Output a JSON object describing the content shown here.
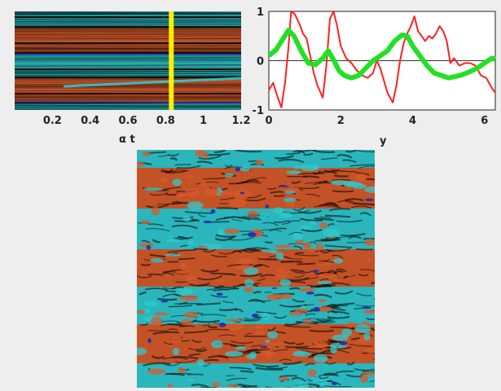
{
  "chart_data": [
    {
      "type": "heatmap",
      "xlabel": "α t",
      "xticks": [
        0.2,
        0.4,
        0.6,
        0.8,
        1,
        1.2
      ],
      "xlim": [
        0,
        1.2
      ],
      "marker": {
        "x": 0.83,
        "color": "#ffee00"
      },
      "colors": {
        "positive": "#d85a2a",
        "negative": "#2ec9cf",
        "extreme": "#1f2fb0",
        "zero": "#111111"
      }
    },
    {
      "type": "line",
      "xlabel": "y",
      "xlim": [
        0,
        6.3
      ],
      "ylim": [
        -1,
        1
      ],
      "xticks": [
        0,
        2,
        4,
        6
      ],
      "yticks": [
        -1,
        0,
        1
      ],
      "zero_line": true,
      "series": [
        {
          "color": "#ff2020",
          "x": [
            0.0,
            0.12,
            0.25,
            0.35,
            0.45,
            0.55,
            0.62,
            0.72,
            0.85,
            0.95,
            1.05,
            1.15,
            1.25,
            1.35,
            1.5,
            1.6,
            1.7,
            1.8,
            1.9,
            2.0,
            2.15,
            2.3,
            2.45,
            2.6,
            2.75,
            2.9,
            3.0,
            3.1,
            3.2,
            3.3,
            3.45,
            3.55,
            3.65,
            3.75,
            3.85,
            3.95,
            4.05,
            4.15,
            4.25,
            4.35,
            4.45,
            4.55,
            4.65,
            4.75,
            4.85,
            4.95,
            5.05,
            5.15,
            5.3,
            5.45,
            5.6,
            5.75,
            5.9,
            6.05,
            6.2,
            6.3
          ],
          "y": [
            -0.6,
            -0.45,
            -0.75,
            -0.95,
            -0.45,
            0.3,
            1.0,
            0.95,
            0.75,
            0.55,
            0.45,
            0.1,
            -0.25,
            -0.5,
            -0.75,
            -0.1,
            0.85,
            1.0,
            0.7,
            0.3,
            0.05,
            -0.05,
            -0.2,
            -0.3,
            -0.35,
            -0.25,
            0.0,
            -0.15,
            -0.4,
            -0.65,
            -0.85,
            -0.5,
            0.0,
            0.35,
            0.55,
            0.7,
            0.9,
            0.6,
            0.5,
            0.4,
            0.5,
            0.45,
            0.55,
            0.7,
            0.6,
            0.4,
            -0.05,
            0.05,
            -0.1,
            -0.05,
            -0.05,
            -0.1,
            -0.3,
            -0.35,
            -0.55,
            -0.65
          ]
        },
        {
          "color": "#22e022",
          "x": [
            0.0,
            0.2,
            0.4,
            0.55,
            0.7,
            0.9,
            1.1,
            1.3,
            1.5,
            1.65,
            1.8,
            1.95,
            2.1,
            2.3,
            2.5,
            2.7,
            2.9,
            3.1,
            3.3,
            3.5,
            3.7,
            3.85,
            4.0,
            4.2,
            4.4,
            4.6,
            4.8,
            5.0,
            5.2,
            5.4,
            5.6,
            5.8,
            6.0,
            6.2,
            6.3
          ],
          "y": [
            0.1,
            0.22,
            0.45,
            0.62,
            0.5,
            0.2,
            -0.05,
            -0.08,
            0.05,
            0.2,
            0.02,
            -0.2,
            -0.3,
            -0.35,
            -0.3,
            -0.15,
            0.0,
            0.1,
            0.2,
            0.4,
            0.52,
            0.5,
            0.3,
            0.1,
            -0.1,
            -0.25,
            -0.3,
            -0.35,
            -0.32,
            -0.28,
            -0.22,
            -0.15,
            -0.05,
            0.05,
            0.03
          ]
        }
      ]
    },
    {
      "type": "heatmap",
      "colors": {
        "positive": "#d85a2a",
        "negative": "#2ec9cf",
        "extreme": "#1f2fb0",
        "zero": "#111111"
      }
    }
  ]
}
